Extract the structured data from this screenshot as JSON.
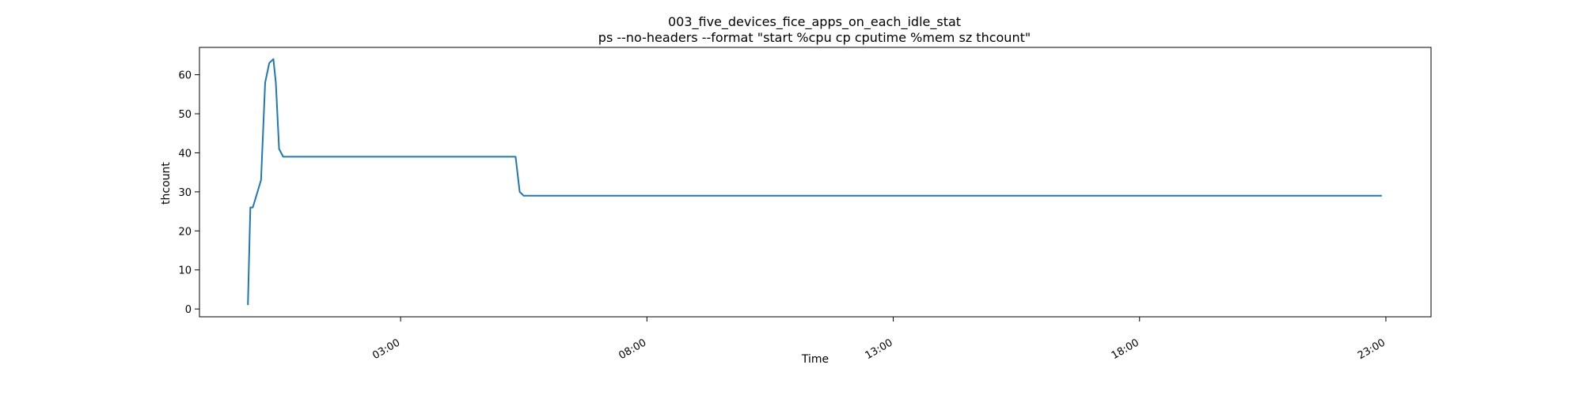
{
  "chart_data": {
    "type": "line",
    "title": "003_five_devices_fice_apps_on_each_idle_stat",
    "subtitle": "ps --no-headers --format \"start %cpu cp cputime %mem sz thcount\"",
    "xlabel": "Time",
    "ylabel": "thcount",
    "x_axis": "time-of-day",
    "xlim": [
      "-1:05",
      "23:55"
    ],
    "ylim": [
      -2,
      67
    ],
    "x_ticks": [
      "03:00",
      "08:00",
      "13:00",
      "18:00",
      "23:00"
    ],
    "y_ticks": [
      0,
      10,
      20,
      30,
      40,
      50,
      60
    ],
    "grid": false,
    "line_color": "#1f77b4",
    "series": [
      {
        "x": [
          "-0:06",
          "-0:03",
          "0:00",
          "0:10",
          "0:15",
          "0:20",
          "0:25",
          "0:28",
          "0:32",
          "0:37",
          "0:41",
          "0:45",
          "0:50",
          "5:20",
          "5:25",
          "5:30",
          "22:55"
        ],
        "values": [
          1,
          26,
          26,
          33,
          58,
          63,
          64,
          58,
          41,
          39,
          39,
          39,
          39,
          39,
          30,
          29,
          29
        ]
      }
    ]
  }
}
